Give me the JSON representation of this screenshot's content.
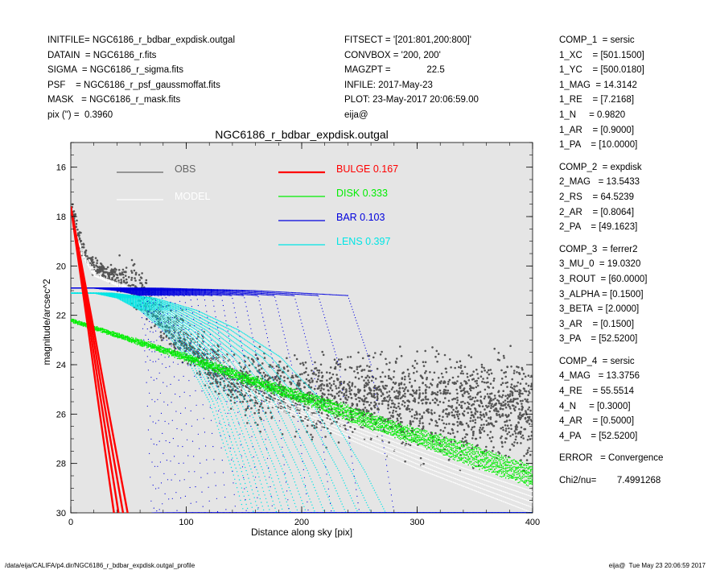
{
  "header_left": [
    "INITFILE= NGC6186_r_bdbar_expdisk.outgal",
    "DATAIN  = NGC6186_r.fits",
    "SIGMA  = NGC6186_r_sigma.fits",
    "PSF    = NGC6186_r_psf_gaussmoffat.fits",
    "MASK   = NGC6186_r_mask.fits",
    "pix (\") =  0.3960"
  ],
  "header_mid": [
    "FITSECT = '[201:801,200:800]'",
    "CONVBOX = '200, 200'",
    "MAGZPT =              22.5",
    "INFILE: 2017-May-23",
    "PLOT: 23-May-2017 20:06:59.00",
    "eija@"
  ],
  "header_right": [
    [
      "COMP_1  = sersic",
      "1_XC    = [501.1500]",
      "1_YC    = [500.0180]",
      "1_MAG  = 14.3142",
      "1_RE    = [7.2168]",
      "1_N     = 0.9820",
      "1_AR    = [0.9000]",
      "1_PA    = [10.0000]"
    ],
    [
      "COMP_2  = expdisk",
      "2_MAG   = 13.5433",
      "2_RS    = 64.5239",
      "2_AR    = [0.8064]",
      "2_PA    = [49.1623]"
    ],
    [
      "COMP_3  = ferrer2",
      "3_MU_0  = 19.0320",
      "3_ROUT  = [60.0000]",
      "3_ALPHA = [0.1500]",
      "3_BETA  = [2.0000]",
      "3_AR    = [0.1500]",
      "3_PA    = [52.5200]"
    ],
    [
      "COMP_4  = sersic",
      "4_MAG   = 13.3756",
      "4_RE    = 55.5514",
      "4_N     = [0.3000]",
      "4_AR    = [0.5000]",
      "4_PA    = [52.5200]"
    ],
    [
      "ERROR   = Convergence"
    ],
    [
      "Chi2/nu=        7.4991268"
    ]
  ],
  "footer_left": "/data/eija/CALIFA/p4.dir/NGC6186_r_bdbar_expdisk.outgal_profile",
  "footer_right": "eija@  Tue May 23 20:06:59 2017",
  "chart_data": {
    "type": "scatter",
    "title": "NGC6186_r_bdbar_expdisk.outgal",
    "xlabel": "Distance along sky [pix]",
    "ylabel": "magnitude/arcsec^2",
    "xlim": [
      0,
      400
    ],
    "ylim": [
      30,
      15
    ],
    "y_inverted": true,
    "xticks": [
      0,
      100,
      200,
      300,
      400
    ],
    "yticks": [
      16,
      18,
      20,
      22,
      24,
      26,
      28,
      30
    ],
    "background": "#e5e5e5",
    "grid": false,
    "legend_position": "top-left, inside",
    "legend": [
      {
        "label": "OBS",
        "color": "#666666"
      },
      {
        "label": "MODEL",
        "color": "#ffffff"
      },
      {
        "label": "BULGE  0.167",
        "color": "#ff0000"
      },
      {
        "label": "DISK  0.333",
        "color": "#00ee00"
      },
      {
        "label": "BAR  0.103",
        "color": "#0000dd"
      },
      {
        "label": "LENS  0.397",
        "color": "#00e5e5"
      }
    ],
    "series": [
      {
        "name": "OBS",
        "color": "#555555",
        "x": [
          0,
          10,
          20,
          30,
          40,
          50,
          60,
          70,
          80,
          100,
          120,
          150,
          200,
          250,
          300,
          350,
          400
        ],
        "y": [
          17.6,
          19.3,
          20.0,
          20.3,
          20.4,
          20.6,
          21.0,
          21.6,
          22.2,
          23.0,
          24.0,
          24.9,
          25.2,
          25.3,
          25.5,
          25.8,
          25.9
        ]
      },
      {
        "name": "MODEL",
        "color": "#ffffff",
        "x": [
          0,
          10,
          20,
          30,
          40,
          50,
          60,
          70,
          80,
          100,
          120,
          140,
          160,
          200,
          250,
          300,
          350,
          400
        ],
        "y": [
          18.0,
          19.6,
          20.4,
          20.6,
          20.8,
          21.0,
          21.2,
          21.7,
          22.2,
          22.9,
          23.9,
          24.9,
          25.4,
          26.2,
          27.2,
          28.2,
          29.1,
          30.0
        ]
      },
      {
        "name": "BULGE  0.167",
        "color": "#ff0000",
        "x": [
          0,
          10,
          20,
          30,
          40,
          50
        ],
        "y": [
          17.6,
          20.1,
          22.6,
          25.2,
          27.7,
          30.2
        ]
      },
      {
        "name": "DISK  0.333",
        "color": "#00ee00",
        "x": [
          0,
          50,
          100,
          150,
          200,
          250,
          300,
          350,
          400
        ],
        "y": [
          22.2,
          23.0,
          23.8,
          24.7,
          25.5,
          26.4,
          27.2,
          28.1,
          28.9
        ]
      },
      {
        "name": "BAR  0.103",
        "color": "#0000dd",
        "x": [
          0,
          20,
          40,
          60,
          65,
          70
        ],
        "y": [
          20.9,
          20.9,
          21.0,
          21.2,
          24.0,
          30.0
        ]
      },
      {
        "name": "LENS  0.397",
        "color": "#00e5e5",
        "x": [
          0,
          20,
          40,
          60,
          80,
          100,
          120,
          140,
          150
        ],
        "y": [
          21.1,
          21.1,
          21.3,
          21.8,
          22.6,
          23.7,
          25.5,
          28.3,
          30.0
        ]
      }
    ]
  }
}
